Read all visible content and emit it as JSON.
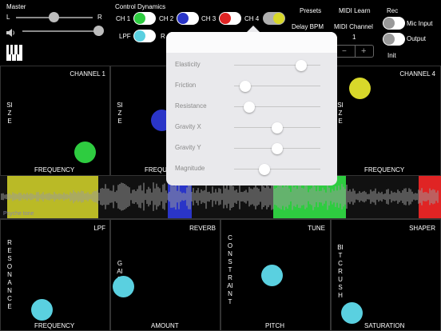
{
  "header": {
    "master_label": "Master",
    "left_label": "L",
    "right_label": "R",
    "control_dynamics_label": "Control Dynamics",
    "presets_label": "Presets",
    "midi_learn_label": "MIDI Learn",
    "rec_label": "Rec",
    "delay_bpm_label": "Delay BPM",
    "midi_channel_label": "MIDI Channel",
    "midi_channel_value": "1",
    "mic_input_label": "Mic Input",
    "output_label": "Output",
    "init_label": "Init",
    "stepper_minus": "−",
    "stepper_plus": "+"
  },
  "channels": [
    {
      "label": "CH 1",
      "color": "#2ecc40"
    },
    {
      "label": "CH 2",
      "color": "#2a35c8"
    },
    {
      "label": "CH 3",
      "color": "#e02424"
    },
    {
      "label": "CH 4",
      "color": "#d8d82a"
    }
  ],
  "second_row": [
    {
      "label": "LPF",
      "color": "#5ad0e0"
    },
    {
      "label": "R",
      "color": "#5ad0e0"
    }
  ],
  "popup": {
    "rows": [
      {
        "label": "Elasticity",
        "value": 0.78
      },
      {
        "label": "Friction",
        "value": 0.13
      },
      {
        "label": "Resistance",
        "value": 0.18
      },
      {
        "label": "Gravity X",
        "value": 0.5
      },
      {
        "label": "Gravity Y",
        "value": 0.5
      },
      {
        "label": "Magnitude",
        "value": 0.35
      }
    ]
  },
  "pads_top": [
    {
      "title": "CHANNEL 1",
      "x_label": "FREQUENCY",
      "y_label": "SIZE",
      "color": "#2ecc40"
    },
    {
      "title": "",
      "x_label": "FREQU",
      "y_label": "SIZE",
      "color": "#2a35c8"
    },
    {
      "title": "",
      "x_label": "",
      "y_label": "",
      "color": "#e02424"
    },
    {
      "title": "CHANNEL 4",
      "x_label": "FREQUENCY",
      "y_label": "SIZE",
      "color": "#d8d82a"
    }
  ],
  "wave": {
    "sample_label": "Psyche tone"
  },
  "pads_bottom": [
    {
      "title": "LPF",
      "x_label": "FREQUENCY",
      "y_label": "RESONANCE",
      "color": "#5ad0e0"
    },
    {
      "title": "REVERB",
      "x_label": "AMOUNT",
      "y_label": "GAIN",
      "color": "#5ad0e0"
    },
    {
      "title": "TUNE",
      "x_label": "PITCH",
      "y_label": "CONSTRAINT",
      "color": "#5ad0e0"
    },
    {
      "title": "SHAPER",
      "x_label": "SATURATION",
      "y_label": "BITCRUSH",
      "color": "#5ad0e0"
    }
  ]
}
